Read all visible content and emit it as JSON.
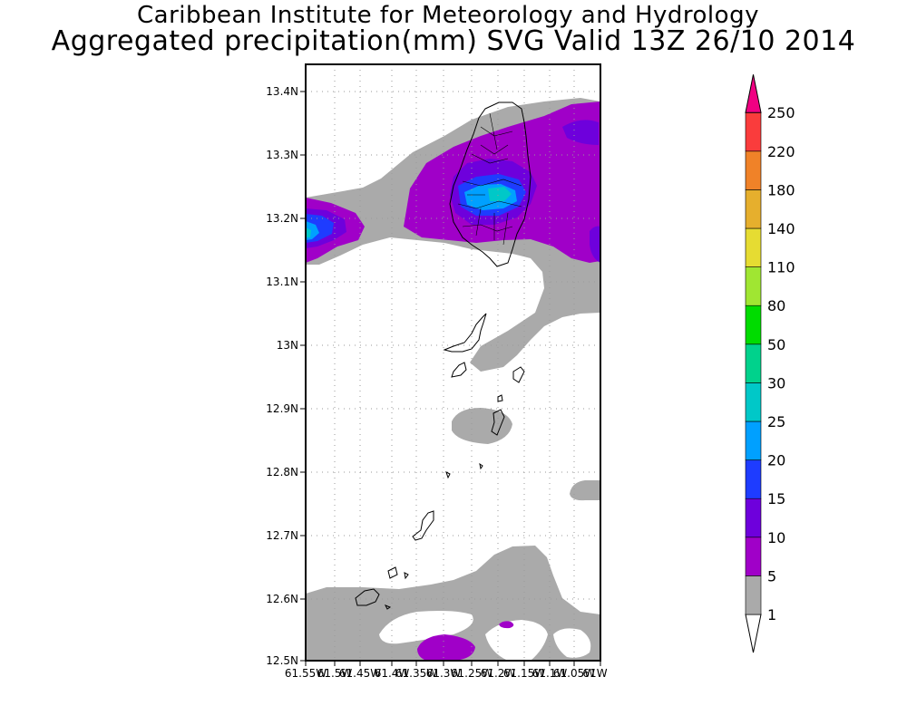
{
  "header": {
    "institute": "Caribbean Institute for Meteorology and Hydrology",
    "product": "Aggregated precipitation(mm) SVG Valid 13Z 26/10 2014"
  },
  "map": {
    "lat_ticks": [
      "13.4N",
      "13.3N",
      "13.2N",
      "13.1N",
      "13N",
      "12.9N",
      "12.8N",
      "12.7N",
      "12.6N",
      "12.5N"
    ],
    "lon_ticks": [
      "61.55W",
      "61.5W",
      "61.45W",
      "61.4W",
      "61.35W",
      "61.3W",
      "61.25W",
      "61.2W",
      "61.15W",
      "61.1W",
      "61.05W",
      "61W"
    ],
    "lat_range": [
      12.5,
      13.4
    ],
    "lon_range": [
      61.55,
      61.0
    ],
    "grid": true
  },
  "colorbar": {
    "levels": [
      "1",
      "5",
      "10",
      "15",
      "20",
      "25",
      "30",
      "50",
      "80",
      "110",
      "140",
      "180",
      "220",
      "250"
    ],
    "colors": [
      "#ffffff",
      "#aaaaaa",
      "#a000c8",
      "#6e00dc",
      "#1e3cff",
      "#00a0ff",
      "#00c8c8",
      "#00d28c",
      "#00dc00",
      "#a0e632",
      "#e6dc32",
      "#e6af2d",
      "#f08228",
      "#fa3c3c",
      "#f00082"
    ]
  }
}
